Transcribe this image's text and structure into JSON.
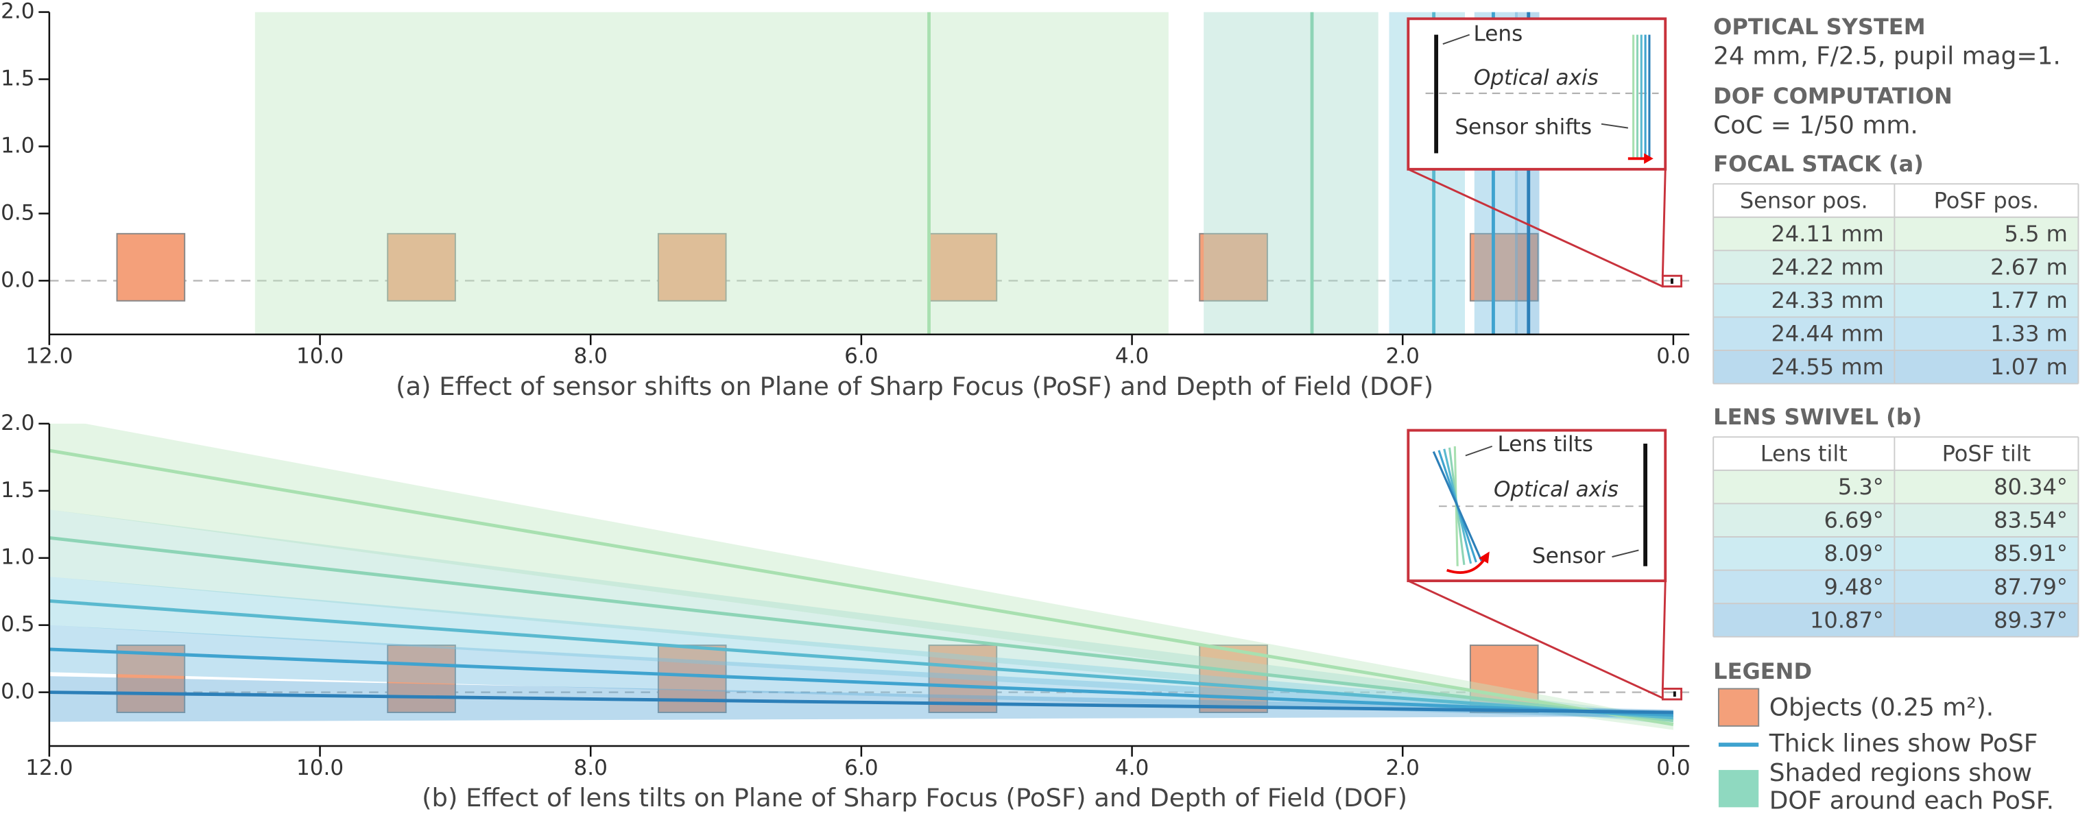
{
  "chart_data": [
    {
      "type": "dof-region",
      "title": "(a) Effect of sensor shifts on Plane of Sharp Focus (PoSF) and Depth of Field (DOF)",
      "xlim": [
        12,
        0
      ],
      "ylim": [
        -0.4,
        2.0
      ],
      "xticks": [
        {
          "value": 12,
          "label": "12.0"
        },
        {
          "value": 10,
          "label": "10.0"
        },
        {
          "value": 8,
          "label": "8.0"
        },
        {
          "value": 6,
          "label": "6.0"
        },
        {
          "value": 4,
          "label": "4.0"
        },
        {
          "value": 2,
          "label": "2.0"
        },
        {
          "value": 0,
          "label": "0.0"
        }
      ],
      "yticks": [
        {
          "value": 0,
          "label": "0.0"
        },
        {
          "value": 0.5,
          "label": "0.5"
        },
        {
          "value": 1,
          "label": "1.0"
        },
        {
          "value": 1.5,
          "label": "1.5"
        },
        {
          "value": 2,
          "label": "2.0"
        }
      ],
      "optical_axis": 0,
      "object_color": "#f4a07a",
      "objects": [
        {
          "x": [
            11.5,
            11.0
          ],
          "y": [
            -0.15,
            0.35
          ]
        },
        {
          "x": [
            9.5,
            9.0
          ],
          "y": [
            -0.15,
            0.35
          ]
        },
        {
          "x": [
            7.5,
            7.0
          ],
          "y": [
            -0.15,
            0.35
          ]
        },
        {
          "x": [
            5.5,
            5.0
          ],
          "y": [
            -0.15,
            0.35
          ]
        },
        {
          "x": [
            3.5,
            3.0
          ],
          "y": [
            -0.15,
            0.35
          ]
        },
        {
          "x": [
            1.5,
            1.0
          ],
          "y": [
            -0.15,
            0.35
          ]
        }
      ],
      "series": [
        {
          "color": "#a8e0b0",
          "fill": "#bfe6c0",
          "x": 5.5,
          "dof": [
            10.48,
            3.73
          ]
        },
        {
          "color": "#8dd4b6",
          "fill": "#a6dccd",
          "x": 2.67,
          "dof": [
            3.47,
            2.18
          ]
        },
        {
          "color": "#5ab9cf",
          "fill": "#89cfe0",
          "x": 1.77,
          "dof": [
            2.1,
            1.54
          ]
        },
        {
          "color": "#3fa3cf",
          "fill": "#72bde0",
          "x": 1.33,
          "dof": [
            1.47,
            1.15
          ]
        },
        {
          "color": "#2c7fb8",
          "fill": "#5aa6d6",
          "x": 1.07,
          "dof": [
            1.17,
            0.99
          ]
        }
      ],
      "inset": {
        "labels": [
          "Lens",
          "Optical axis",
          "Sensor shifts"
        ]
      }
    },
    {
      "type": "tilted-plane",
      "title": "(b) Effect of lens tilts on Plane of Sharp Focus (PoSF) and Depth of Field (DOF)",
      "xlim": [
        12,
        0
      ],
      "ylim": [
        -0.4,
        2.0
      ],
      "xticks": [
        {
          "value": 12,
          "label": "12.0"
        },
        {
          "value": 10,
          "label": "10.0"
        },
        {
          "value": 8,
          "label": "8.0"
        },
        {
          "value": 6,
          "label": "6.0"
        },
        {
          "value": 4,
          "label": "4.0"
        },
        {
          "value": 2,
          "label": "2.0"
        },
        {
          "value": 0,
          "label": "0.0"
        }
      ],
      "yticks": [
        {
          "value": 0,
          "label": "0.0"
        },
        {
          "value": 0.5,
          "label": "0.5"
        },
        {
          "value": 1,
          "label": "1.0"
        },
        {
          "value": 1.5,
          "label": "1.5"
        },
        {
          "value": 2,
          "label": "2.0"
        }
      ],
      "optical_axis": 0,
      "object_color": "#f4a07a",
      "objects": [
        {
          "x": [
            11.5,
            11.0
          ],
          "y": [
            -0.15,
            0.35
          ]
        },
        {
          "x": [
            9.5,
            9.0
          ],
          "y": [
            -0.15,
            0.35
          ]
        },
        {
          "x": [
            7.5,
            7.0
          ],
          "y": [
            -0.15,
            0.35
          ]
        },
        {
          "x": [
            5.5,
            5.0
          ],
          "y": [
            -0.15,
            0.35
          ]
        },
        {
          "x": [
            3.5,
            3.0
          ],
          "y": [
            -0.15,
            0.35
          ]
        },
        {
          "x": [
            1.5,
            1.0
          ],
          "y": [
            -0.15,
            0.35
          ]
        }
      ],
      "series": [
        {
          "color": "#a8e0b0",
          "fill": "#bfe6c0",
          "x": [
            12,
            0
          ],
          "values": [
            1.8,
            -0.24
          ],
          "upper": [
            2.05,
            -0.2
          ],
          "lower": [
            1.36,
            -0.28
          ]
        },
        {
          "color": "#8dd4b6",
          "fill": "#a6dccd",
          "x": [
            12,
            0
          ],
          "values": [
            1.15,
            -0.21
          ],
          "upper": [
            1.36,
            -0.18
          ],
          "lower": [
            0.86,
            -0.24
          ]
        },
        {
          "color": "#5ab9cf",
          "fill": "#89cfe0",
          "x": [
            12,
            0
          ],
          "values": [
            0.68,
            -0.19
          ],
          "upper": [
            0.86,
            -0.17
          ],
          "lower": [
            0.5,
            -0.22
          ]
        },
        {
          "color": "#3fa3cf",
          "fill": "#72bde0",
          "x": [
            12,
            0
          ],
          "values": [
            0.32,
            -0.17
          ],
          "upper": [
            0.5,
            -0.15
          ],
          "lower": [
            0.15,
            -0.2
          ]
        },
        {
          "color": "#2c7fb8",
          "fill": "#5aa6d6",
          "x": [
            12,
            0
          ],
          "values": [
            0.0,
            -0.15
          ],
          "upper": [
            0.12,
            -0.13
          ],
          "lower": [
            -0.22,
            -0.18
          ]
        }
      ],
      "inset": {
        "labels": [
          "Lens tilts",
          "Optical axis",
          "Sensor"
        ]
      }
    }
  ],
  "panel": {
    "optical_system": {
      "heading": "OPTICAL SYSTEM",
      "text": "24 mm, F/2.5, pupil mag=1."
    },
    "dof_computation": {
      "heading": "DOF COMPUTATION",
      "text": "CoC = 1/50 mm."
    },
    "focal_stack": {
      "heading": "FOCAL STACK (a)",
      "columns": [
        "Sensor pos.",
        "PoSF pos."
      ],
      "rows": [
        [
          "24.11 mm",
          "5.5 m"
        ],
        [
          "24.22 mm",
          "2.67 m"
        ],
        [
          "24.33 mm",
          "1.77 m"
        ],
        [
          "24.44 mm",
          "1.33 m"
        ],
        [
          "24.55 mm",
          "1.07 m"
        ]
      ]
    },
    "lens_swivel": {
      "heading": "LENS SWIVEL (b)",
      "columns": [
        "Lens tilt",
        "PoSF tilt"
      ],
      "rows": [
        [
          "5.3°",
          "80.34°"
        ],
        [
          "6.69°",
          "83.54°"
        ],
        [
          "8.09°",
          "85.91°"
        ],
        [
          "9.48°",
          "87.79°"
        ],
        [
          "10.87°",
          "89.37°"
        ]
      ]
    },
    "legend": {
      "heading": "LEGEND",
      "items": [
        {
          "label": "Objects (0.25 m²).",
          "color": "#f4a07a"
        },
        {
          "label": "Thick lines show PoSF",
          "color": "#3fa3cf"
        },
        {
          "label": [
            "Shaded regions show",
            "DOF around each PoSF."
          ],
          "color": "#8fd9c0"
        }
      ]
    }
  }
}
